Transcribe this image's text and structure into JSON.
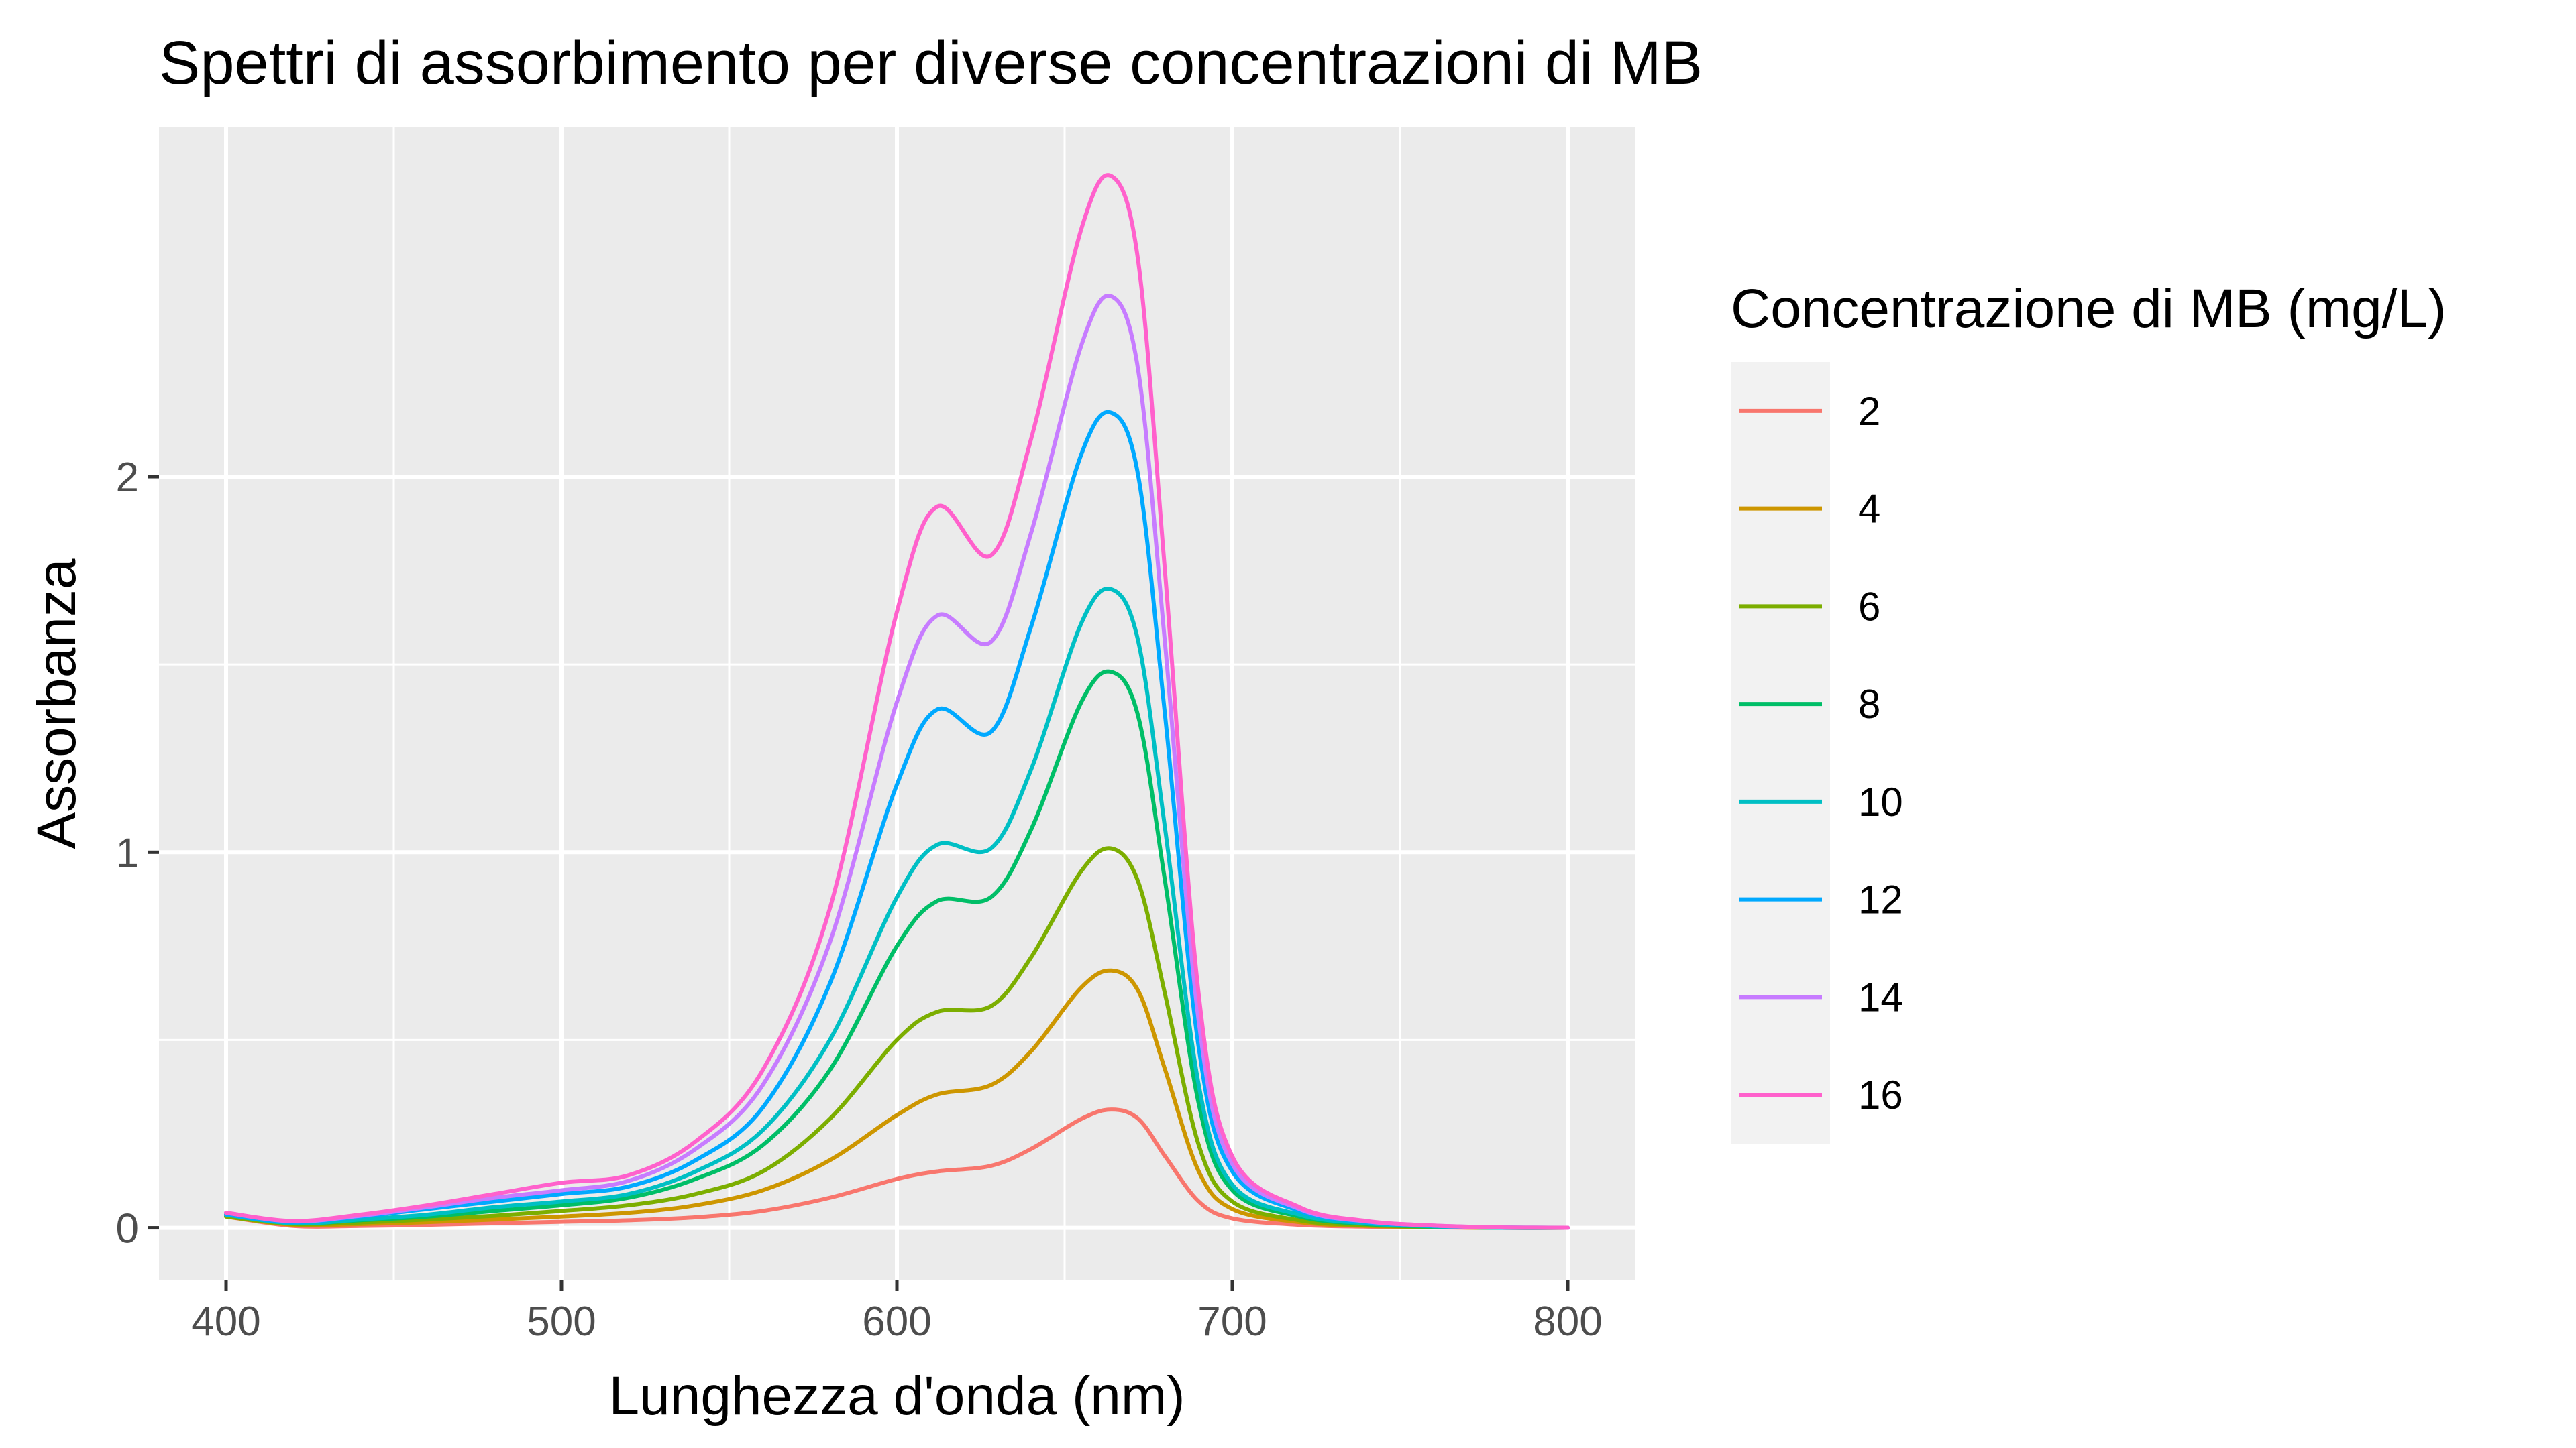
{
  "chart_data": {
    "type": "line",
    "title": "Spettri di assorbimento per diverse concentrazioni di MB",
    "xlabel": "Lunghezza d'onda (nm)",
    "ylabel": "Assorbanza",
    "xlim": [
      380,
      820
    ],
    "ylim": [
      -0.14,
      2.93
    ],
    "x_ticks": [
      400,
      500,
      600,
      700,
      800
    ],
    "x_tick_labels": [
      "400",
      "500",
      "600",
      "700",
      "800"
    ],
    "y_ticks": [
      0,
      1,
      2
    ],
    "y_tick_labels": [
      "0",
      "1",
      "2"
    ],
    "grid": true,
    "legend": {
      "title": "Concentrazione di MB (mg/L)",
      "placement": "right"
    },
    "x": [
      400,
      420,
      440,
      460,
      480,
      500,
      520,
      540,
      560,
      580,
      600,
      612,
      628,
      640,
      655,
      664,
      672,
      680,
      690,
      700,
      720,
      740,
      760,
      780,
      800
    ],
    "series": [
      {
        "name": "2",
        "color": "#F8766D",
        "values": [
          0.03,
          0.005,
          0.005,
          0.008,
          0.012,
          0.016,
          0.02,
          0.028,
          0.045,
          0.08,
          0.13,
          0.15,
          0.165,
          0.21,
          0.29,
          0.315,
          0.29,
          0.19,
          0.07,
          0.025,
          0.008,
          0.003,
          0.001,
          0.0,
          0.0
        ]
      },
      {
        "name": "4",
        "color": "#CD9600",
        "values": [
          0.03,
          0.008,
          0.01,
          0.015,
          0.022,
          0.03,
          0.04,
          0.06,
          0.1,
          0.18,
          0.3,
          0.355,
          0.38,
          0.47,
          0.64,
          0.685,
          0.63,
          0.42,
          0.15,
          0.05,
          0.015,
          0.005,
          0.002,
          0.0,
          0.0
        ]
      },
      {
        "name": "6",
        "color": "#7CAE00",
        "values": [
          0.03,
          0.01,
          0.014,
          0.022,
          0.032,
          0.045,
          0.06,
          0.09,
          0.15,
          0.29,
          0.5,
          0.575,
          0.59,
          0.72,
          0.95,
          1.01,
          0.92,
          0.62,
          0.22,
          0.07,
          0.02,
          0.007,
          0.002,
          0.0,
          0.0
        ]
      },
      {
        "name": "8",
        "color": "#00BE67",
        "values": [
          0.035,
          0.012,
          0.02,
          0.03,
          0.045,
          0.06,
          0.08,
          0.13,
          0.22,
          0.42,
          0.75,
          0.87,
          0.88,
          1.06,
          1.4,
          1.48,
          1.36,
          0.92,
          0.33,
          0.1,
          0.03,
          0.01,
          0.003,
          0.0,
          0.0
        ]
      },
      {
        "name": "10",
        "color": "#00BFC4",
        "values": [
          0.035,
          0.012,
          0.022,
          0.035,
          0.055,
          0.07,
          0.09,
          0.15,
          0.26,
          0.5,
          0.88,
          1.02,
          1.01,
          1.22,
          1.61,
          1.7,
          1.56,
          1.06,
          0.38,
          0.115,
          0.035,
          0.012,
          0.004,
          0.0,
          0.0
        ]
      },
      {
        "name": "12",
        "color": "#00A9FF",
        "values": [
          0.035,
          0.015,
          0.03,
          0.05,
          0.07,
          0.09,
          0.11,
          0.18,
          0.32,
          0.65,
          1.18,
          1.38,
          1.32,
          1.6,
          2.06,
          2.17,
          2.0,
          1.36,
          0.48,
          0.15,
          0.045,
          0.015,
          0.005,
          0.001,
          0.0
        ]
      },
      {
        "name": "14",
        "color": "#C77CFF",
        "values": [
          0.04,
          0.017,
          0.032,
          0.055,
          0.08,
          0.1,
          0.125,
          0.21,
          0.38,
          0.76,
          1.4,
          1.63,
          1.56,
          1.85,
          2.35,
          2.48,
          2.28,
          1.55,
          0.55,
          0.17,
          0.05,
          0.017,
          0.006,
          0.001,
          0.0
        ]
      },
      {
        "name": "16",
        "color": "#FF61CC",
        "values": [
          0.04,
          0.018,
          0.035,
          0.06,
          0.09,
          0.12,
          0.14,
          0.23,
          0.42,
          0.85,
          1.64,
          1.92,
          1.79,
          2.1,
          2.66,
          2.8,
          2.57,
          1.74,
          0.62,
          0.19,
          0.055,
          0.018,
          0.006,
          0.001,
          0.0
        ]
      }
    ],
    "colors": {
      "panel_background": "#EBEBEB",
      "grid": "#FFFFFF",
      "legend_key_background": "#F2F2F2"
    }
  }
}
